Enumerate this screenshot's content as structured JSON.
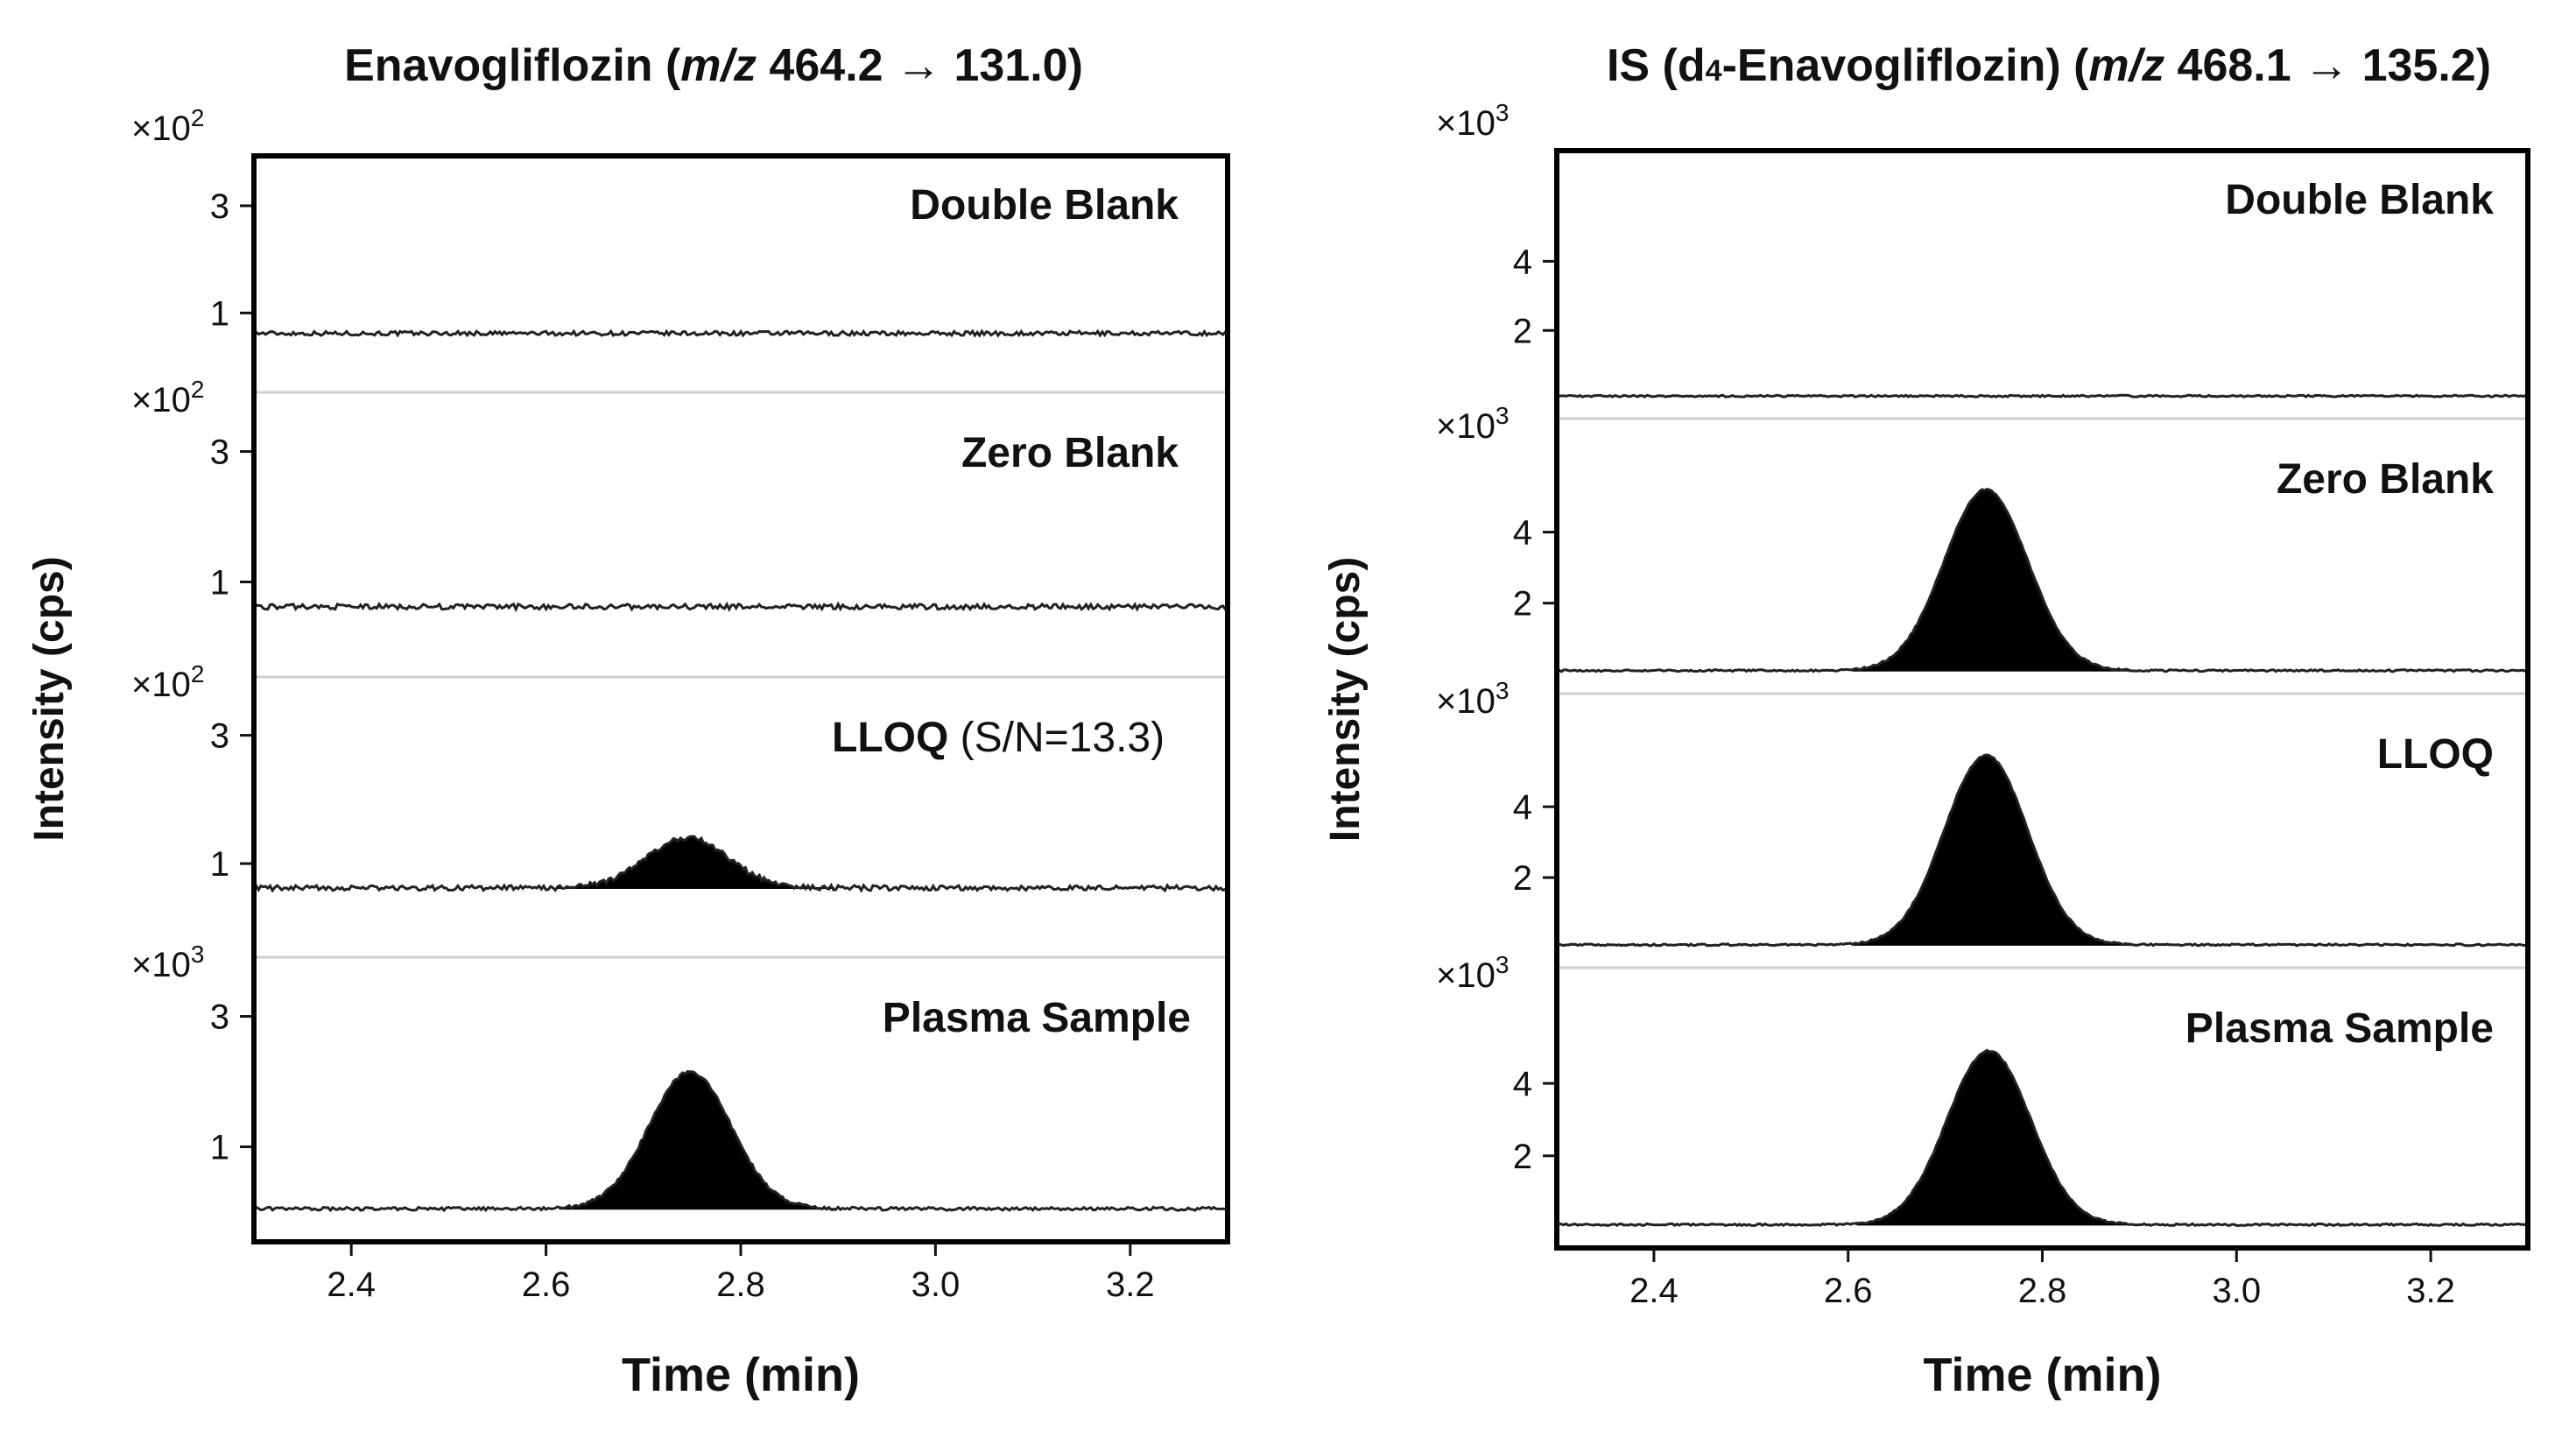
{
  "chart_data": [
    {
      "type": "line",
      "title_prefix": "Enavogliflozin (",
      "title_mz": "m/z",
      "title_suffix": " 464.2 → 131.0)",
      "xlabel": "Time (min)",
      "ylabel": "Intensity (cps)",
      "xlim": [
        2.3,
        3.3
      ],
      "x_ticks": [
        "2.4",
        "2.6",
        "2.8",
        "3.0",
        "3.2"
      ],
      "panels": [
        {
          "label": "Double Blank",
          "label_suffix": "",
          "scale_base": "×10",
          "scale_exp": "2",
          "y_ticks": [
            "3",
            "1"
          ],
          "series": {
            "baseline": 0.62,
            "peak_height": 0.0,
            "peak_center": 2.745,
            "peak_width": 0.05
          }
        },
        {
          "label": "Zero Blank",
          "label_suffix": "",
          "scale_base": "×10",
          "scale_exp": "2",
          "y_ticks": [
            "3",
            "1"
          ],
          "series": {
            "baseline": 0.62,
            "peak_height": 0.0,
            "peak_center": 2.745,
            "peak_width": 0.05
          }
        },
        {
          "label": "LLOQ",
          "label_suffix": " (S/N=13.3)",
          "scale_base": "×10",
          "scale_exp": "2",
          "y_ticks": [
            "3",
            "1"
          ],
          "series": {
            "baseline": 0.62,
            "peak_height": 0.78,
            "peak_center": 2.745,
            "peak_width": 0.042
          }
        },
        {
          "label": "Plasma Sample",
          "label_suffix": "",
          "scale_base": "×10",
          "scale_exp": "3",
          "y_ticks": [
            "3",
            "1"
          ],
          "series": {
            "baseline": 0.05,
            "peak_height": 2.1,
            "peak_center": 2.748,
            "peak_width": 0.042
          }
        }
      ]
    },
    {
      "type": "line",
      "title_prefix": "IS (d",
      "title_sub": "4",
      "title_mid": "-Enavogliflozin) (",
      "title_mz": "m/z",
      "title_suffix": " 468.1 → 135.2)",
      "xlabel": "Time (min)",
      "ylabel": "Intensity (cps)",
      "xlim": [
        2.3,
        3.3
      ],
      "x_ticks": [
        "2.4",
        "2.6",
        "2.8",
        "3.0",
        "3.2"
      ],
      "panels": [
        {
          "label": "Double Blank",
          "label_suffix": "",
          "scale_base": "×10",
          "scale_exp": "3",
          "y_ticks": [
            "4",
            "2"
          ],
          "series": {
            "baseline": 0.1,
            "peak_height": 0.0,
            "peak_center": 2.745,
            "peak_width": 0.05
          }
        },
        {
          "label": "Zero Blank",
          "label_suffix": "",
          "scale_base": "×10",
          "scale_exp": "3",
          "y_ticks": [
            "4",
            "2"
          ],
          "series": {
            "baseline": 0.1,
            "peak_height": 5.1,
            "peak_center": 2.742,
            "peak_width": 0.043
          }
        },
        {
          "label": "LLOQ",
          "label_suffix": "",
          "scale_base": "×10",
          "scale_exp": "3",
          "y_ticks": [
            "4",
            "2"
          ],
          "series": {
            "baseline": 0.1,
            "peak_height": 5.35,
            "peak_center": 2.742,
            "peak_width": 0.043
          }
        },
        {
          "label": "Plasma Sample",
          "label_suffix": "",
          "scale_base": "×10",
          "scale_exp": "3",
          "y_ticks": [
            "4",
            "2"
          ],
          "series": {
            "baseline": 0.1,
            "peak_height": 4.8,
            "peak_center": 2.745,
            "peak_width": 0.043
          }
        }
      ]
    }
  ]
}
